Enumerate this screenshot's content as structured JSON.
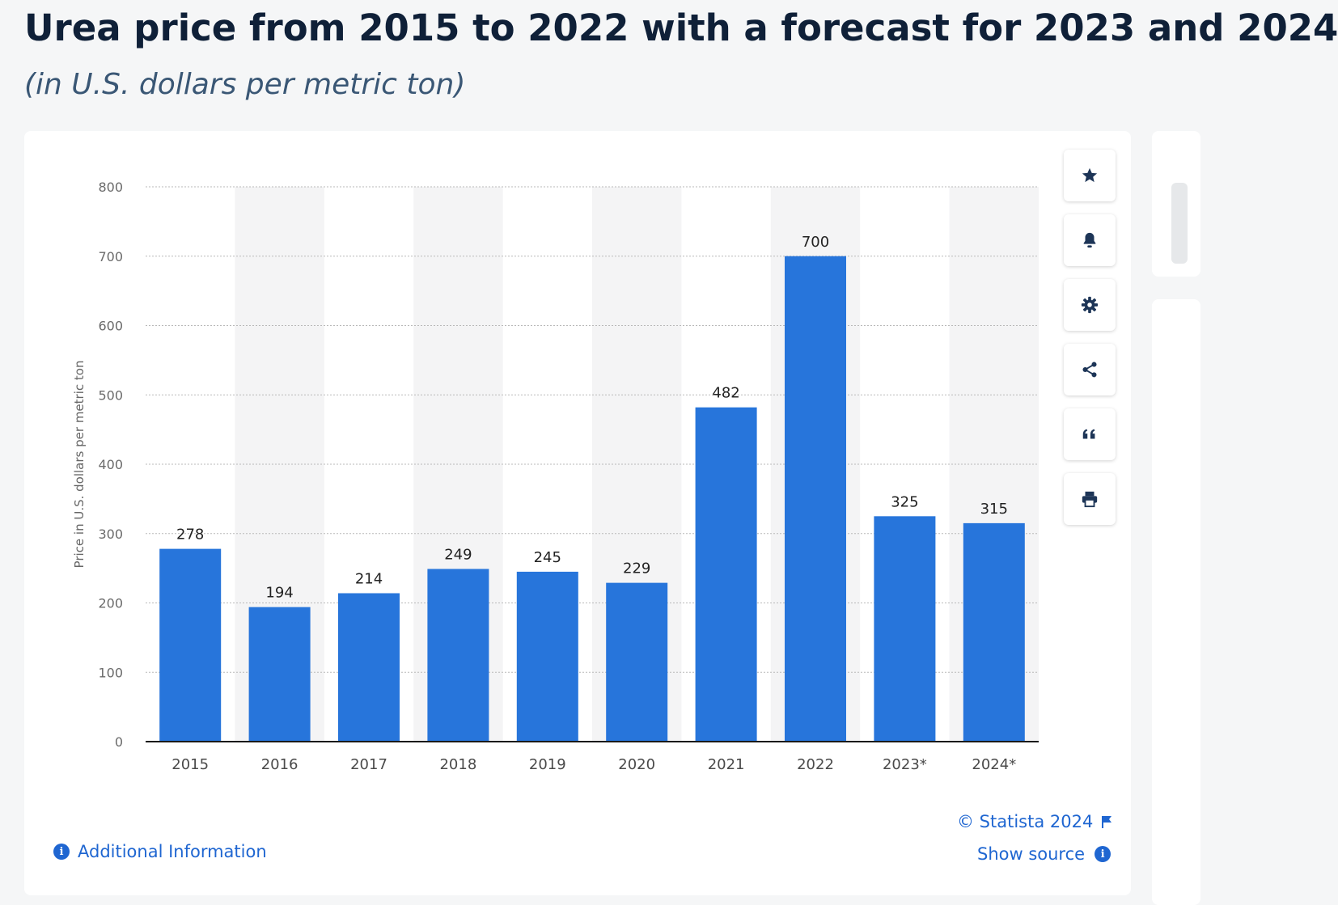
{
  "title": "Urea price from 2015 to 2022 with a forecast for 2023 and 2024",
  "subtitle": "(in U.S. dollars per metric ton)",
  "toolbar": {
    "favorite_icon": "star-icon",
    "notify_icon": "bell-icon",
    "settings_icon": "gear-icon",
    "share_icon": "share-icon",
    "cite_icon": "quote-icon",
    "print_icon": "print-icon"
  },
  "footer": {
    "additional_info": "Additional Information",
    "credit": "© Statista 2024",
    "show_source": "Show source"
  },
  "colors": {
    "bar": "#2775db",
    "accent": "#1f66d1",
    "band": "#f4f4f5"
  },
  "chart_data": {
    "type": "bar",
    "categories": [
      "2015",
      "2016",
      "2017",
      "2018",
      "2019",
      "2020",
      "2021",
      "2022",
      "2023*",
      "2024*"
    ],
    "values": [
      278,
      194,
      214,
      249,
      245,
      229,
      482,
      700,
      325,
      315
    ],
    "data_labels": [
      "278",
      "194",
      "214",
      "249",
      "245",
      "229",
      "482",
      "700",
      "325",
      "315"
    ],
    "title": "",
    "xlabel": "",
    "ylabel": "Price in U.S. dollars per metric ton",
    "ylim": [
      0,
      800
    ],
    "yticks": [
      0,
      100,
      200,
      300,
      400,
      500,
      600,
      700,
      800
    ],
    "grid": true,
    "legend": "none"
  }
}
